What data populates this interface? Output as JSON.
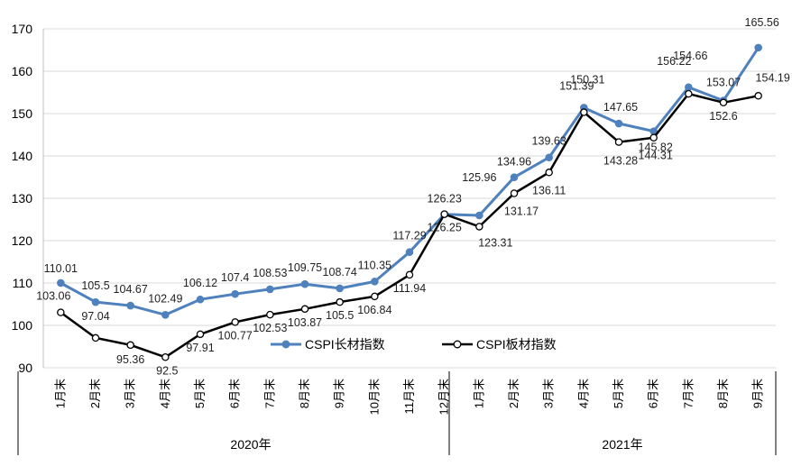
{
  "chart_data": {
    "type": "line",
    "categories": [
      "1月末",
      "2月末",
      "3月末",
      "4月末",
      "5月末",
      "6月末",
      "7月末",
      "8月末",
      "9月末",
      "10月末",
      "11月末",
      "12月末",
      "1月末",
      "2月末",
      "3月末",
      "4月末",
      "5月末",
      "6月末",
      "7月末",
      "8月末",
      "9月末"
    ],
    "groups": [
      {
        "label": "2020年",
        "start": 0,
        "end": 11
      },
      {
        "label": "2021年",
        "start": 12,
        "end": 20
      }
    ],
    "ylim": [
      90,
      170
    ],
    "yticks": [
      90,
      100,
      110,
      120,
      130,
      140,
      150,
      160,
      170
    ],
    "grid": true,
    "legend_position": "bottom-center",
    "series": [
      {
        "name": "CSPI长材指数",
        "color": "#4F81BD",
        "marker": "filled-circle",
        "values": [
          110.01,
          105.5,
          104.67,
          102.49,
          106.12,
          107.4,
          108.53,
          109.75,
          108.74,
          110.35,
          117.29,
          126.23,
          125.96,
          134.96,
          139.63,
          151.39,
          147.65,
          145.82,
          156.22,
          153.07,
          165.56
        ],
        "labels": [
          "110.01",
          "105.5",
          "104.67",
          "102.49",
          "106.12",
          "107.4",
          "108.53",
          "109.75",
          "108.74",
          "110.35",
          "117.29",
          "126.23",
          "125.96",
          "134.96",
          "139.63",
          "151.39",
          "147.65",
          "145.82",
          "156.22",
          "153.07",
          "165.56"
        ]
      },
      {
        "name": "CSPI板材指数",
        "color": "#000000",
        "marker": "hollow-circle",
        "values": [
          103.06,
          97.04,
          95.36,
          92.5,
          97.91,
          100.77,
          102.53,
          103.87,
          105.5,
          106.84,
          111.94,
          126.25,
          123.31,
          131.17,
          136.11,
          150.31,
          143.28,
          144.31,
          154.66,
          152.6,
          154.19
        ],
        "labels": [
          "103.06",
          "97.04",
          "95.36",
          "92.5",
          "97.91",
          "100.77",
          "102.53",
          "103.87",
          "105.5",
          "106.84",
          "111.94",
          "126.25",
          "123.31",
          "131.17",
          "136.11",
          "150.31",
          "143.28",
          "144.31",
          "154.66",
          "152.6",
          "154.19"
        ]
      }
    ]
  }
}
